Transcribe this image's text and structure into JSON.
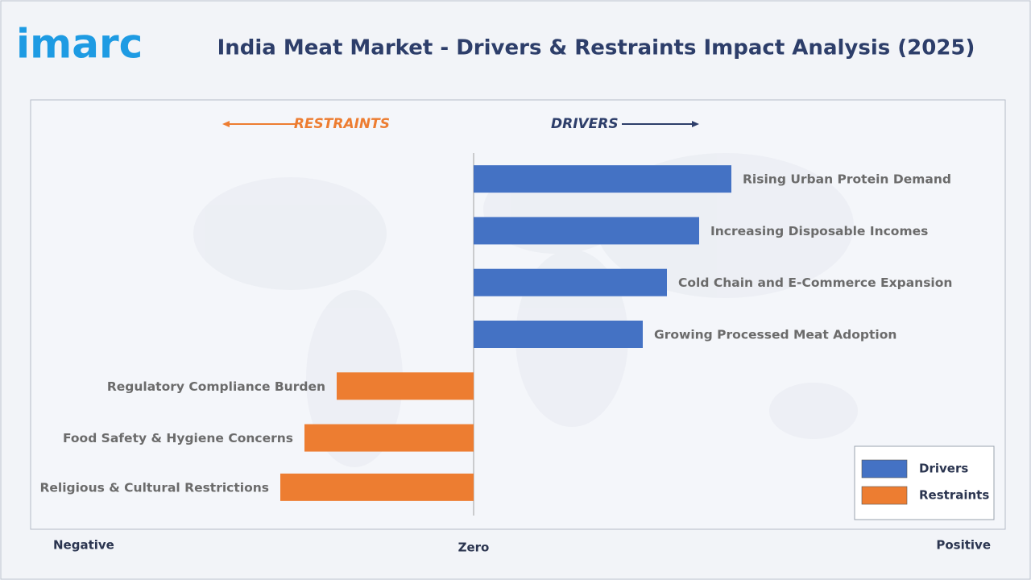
{
  "logo": "imarc",
  "chart_data": {
    "type": "diverging-bar",
    "title": "India Meat Market - Drivers & Restraints Impact Analysis (2025)",
    "annotations": [
      "RESTRAINTS",
      "DRIVERS"
    ],
    "categories": [
      "Rising Urban Protein Demand",
      "Increasing Disposable Incomes",
      "Cold Chain and E-Commerce Expansion",
      "Growing Processed Meat Adoption",
      "Regulatory Compliance Burden",
      "Food Safety & Hygiene Concerns",
      "Religious & Cultural Restrictions"
    ],
    "series": [
      {
        "name": "Drivers",
        "color": "#4472c4",
        "values": [
          3.2,
          2.8,
          2.4,
          2.1,
          null,
          null,
          null
        ]
      },
      {
        "name": "Restraints",
        "color": "#ed7d31",
        "values": [
          null,
          null,
          null,
          null,
          -1.7,
          -2.1,
          -2.4
        ]
      }
    ],
    "xlim": [
      -5.5,
      6.6
    ],
    "xticks": [
      {
        "value": -5.5,
        "label": "Negative"
      },
      {
        "value": 0,
        "label": "Zero"
      },
      {
        "value": 6.6,
        "label": "Positive"
      }
    ],
    "legend": "bottom-right"
  }
}
